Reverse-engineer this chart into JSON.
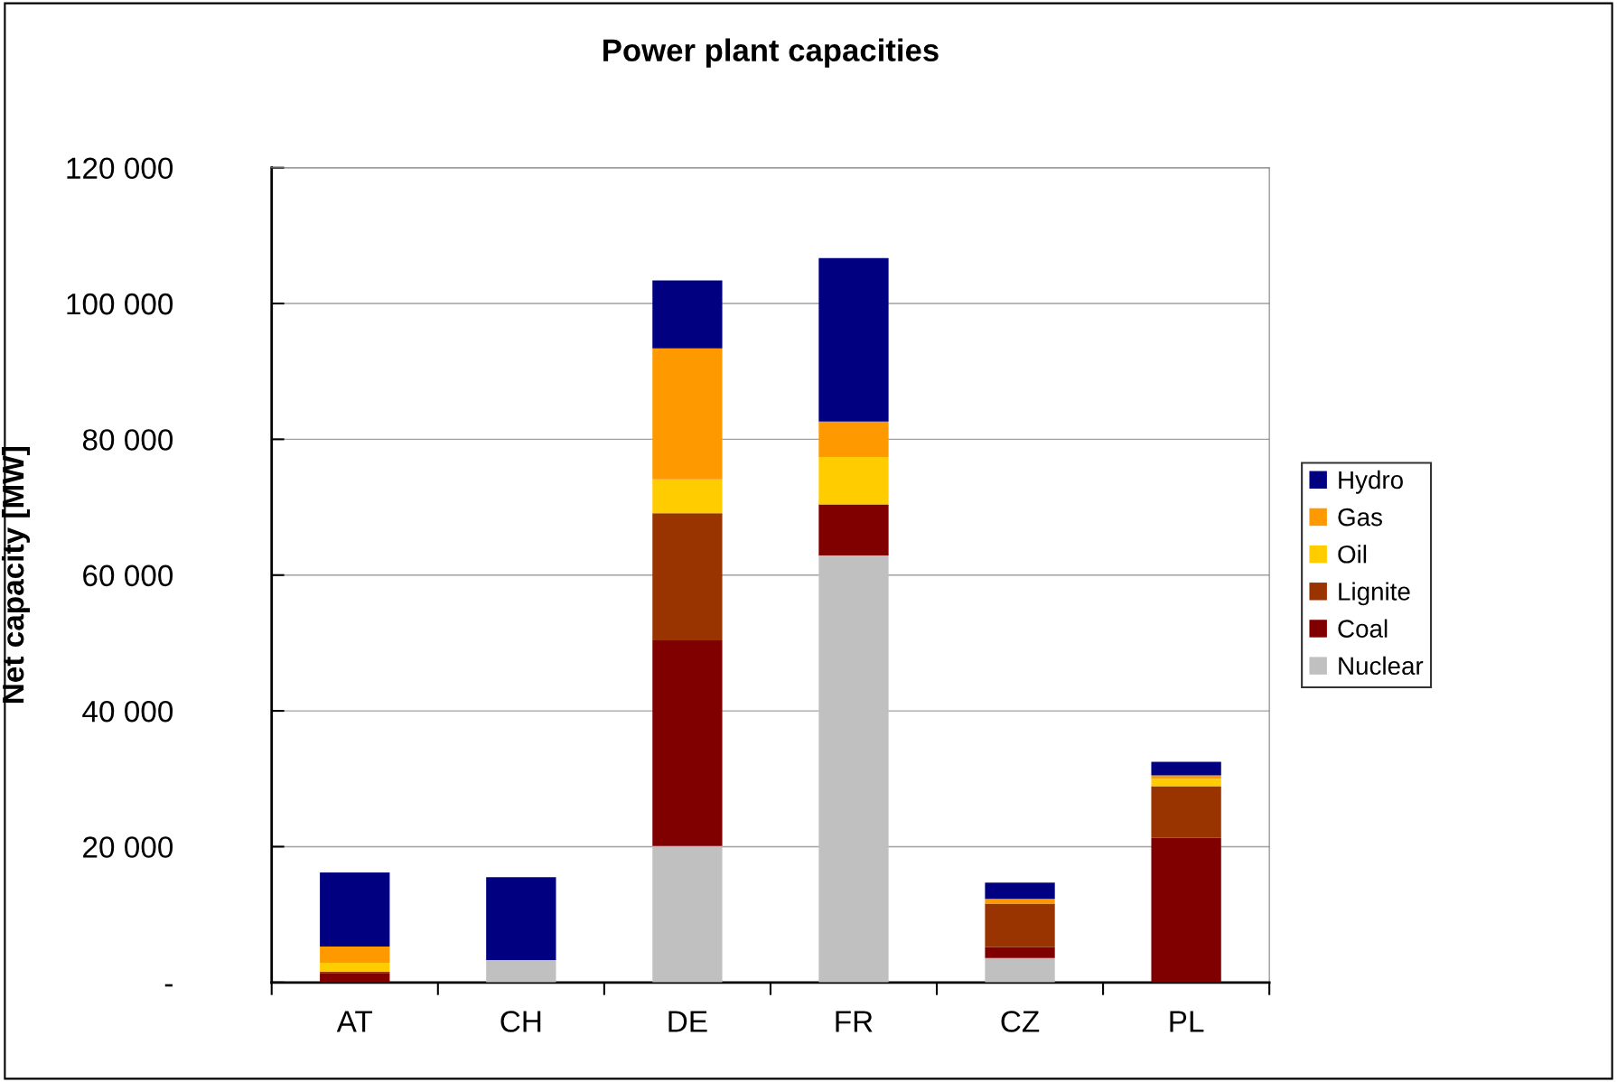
{
  "chart_data": {
    "type": "bar",
    "stacked": true,
    "title": "Power plant capacities",
    "ylabel": "Net capacity [MW]",
    "categories": [
      "AT",
      "CH",
      "DE",
      "FR",
      "CZ",
      "PL"
    ],
    "series": [
      {
        "name": "Nuclear",
        "color": "#c0c0c0",
        "values": [
          null,
          3300,
          20100,
          62900,
          3600,
          null
        ]
      },
      {
        "name": "Coal",
        "color": "#800000",
        "values": [
          1400,
          null,
          30300,
          7500,
          1600,
          21300
        ]
      },
      {
        "name": "Lignite",
        "color": "#993300",
        "values": [
          200,
          null,
          18700,
          null,
          6400,
          7600
        ]
      },
      {
        "name": "Oil",
        "color": "#ffcc00",
        "values": [
          1300,
          null,
          5000,
          7000,
          null,
          1100
        ]
      },
      {
        "name": "Gas",
        "color": "#ff9900",
        "values": [
          2400,
          null,
          19300,
          5200,
          700,
          500
        ]
      },
      {
        "name": "Hydro",
        "color": "#000080",
        "values": [
          10900,
          12200,
          10000,
          24100,
          2400,
          2000
        ]
      }
    ],
    "ylim": [
      0,
      120000
    ],
    "yticks": [
      {
        "value": 0,
        "label": "-"
      },
      {
        "value": 20000,
        "label": "20 000"
      },
      {
        "value": 40000,
        "label": "40 000"
      },
      {
        "value": 60000,
        "label": "60 000"
      },
      {
        "value": 80000,
        "label": "80 000"
      },
      {
        "value": 100000,
        "label": "100 000"
      },
      {
        "value": 120000,
        "label": "120 000"
      }
    ],
    "grid": "y",
    "legend": "right"
  }
}
